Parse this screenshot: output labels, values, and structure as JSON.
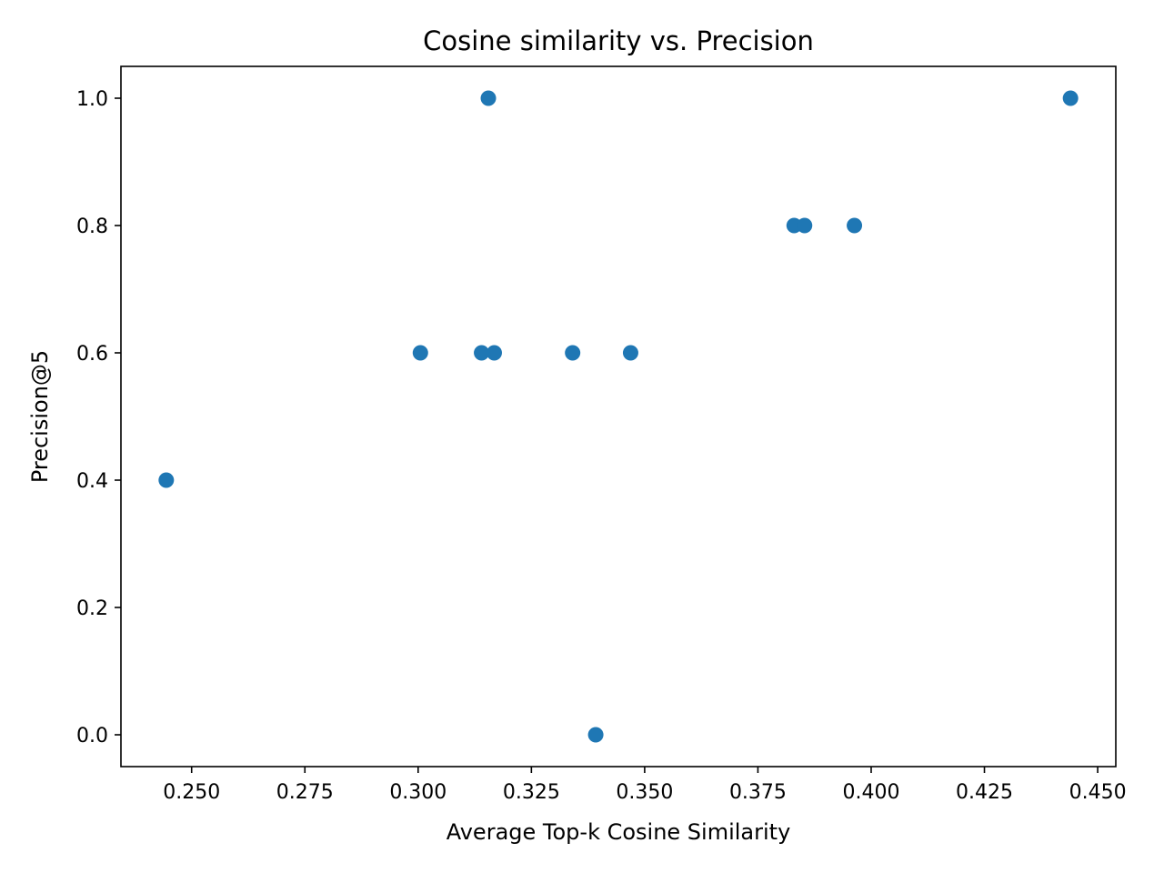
{
  "chart_data": {
    "type": "scatter",
    "title": "Cosine similarity vs. Precision",
    "xlabel": "Average Top-k Cosine Similarity",
    "ylabel": "Precision@5",
    "xlim": [
      0.2344,
      0.454
    ],
    "ylim": [
      -0.05,
      1.05
    ],
    "x_ticks": [
      0.25,
      0.275,
      0.3,
      0.325,
      0.35,
      0.375,
      0.4,
      0.425,
      0.45
    ],
    "x_tick_labels": [
      "0.250",
      "0.275",
      "0.300",
      "0.325",
      "0.350",
      "0.375",
      "0.400",
      "0.425",
      "0.450"
    ],
    "y_ticks": [
      0.0,
      0.2,
      0.4,
      0.6,
      0.8,
      1.0
    ],
    "y_tick_labels": [
      "0.0",
      "0.2",
      "0.4",
      "0.6",
      "0.8",
      "1.0"
    ],
    "grid": false,
    "marker_color": "#1f77b4",
    "points": [
      {
        "x": 0.2444,
        "y": 0.4
      },
      {
        "x": 0.3005,
        "y": 0.6
      },
      {
        "x": 0.314,
        "y": 0.6
      },
      {
        "x": 0.3155,
        "y": 1.0
      },
      {
        "x": 0.3168,
        "y": 0.6
      },
      {
        "x": 0.3341,
        "y": 0.6
      },
      {
        "x": 0.3392,
        "y": 0.0
      },
      {
        "x": 0.3469,
        "y": 0.6
      },
      {
        "x": 0.383,
        "y": 0.8
      },
      {
        "x": 0.3853,
        "y": 0.8
      },
      {
        "x": 0.3963,
        "y": 0.8
      },
      {
        "x": 0.444,
        "y": 1.0
      }
    ]
  }
}
